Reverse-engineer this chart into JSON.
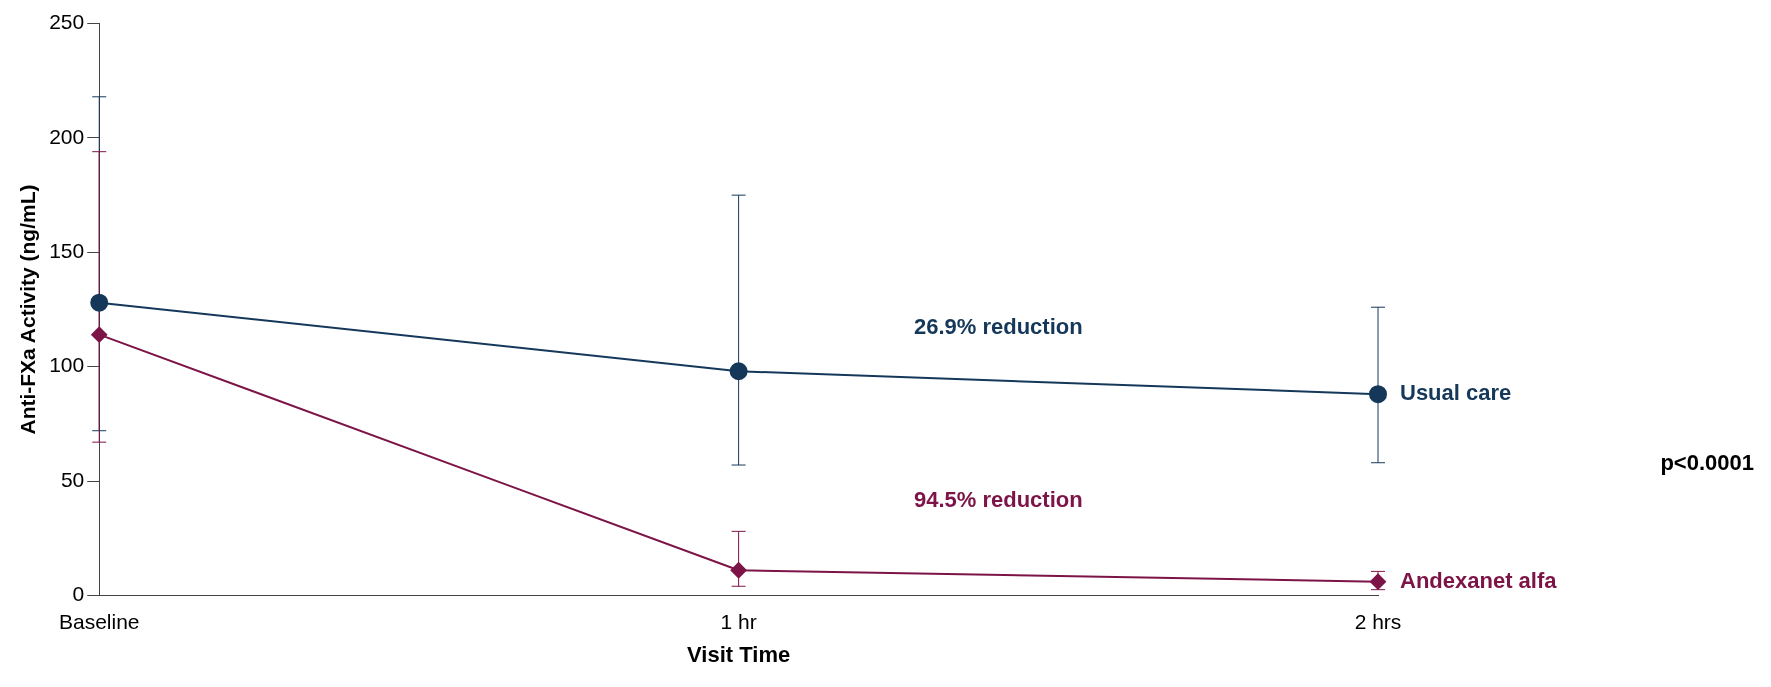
{
  "chart_data": {
    "type": "line",
    "xlabel": "Visit Time",
    "ylabel": "Anti-FXa Activity (ng/mL)",
    "categories": [
      "Baseline",
      "1 hr",
      "2 hrs"
    ],
    "series": [
      {
        "name": "Usual care",
        "color": "#15385a",
        "marker": "circle",
        "values": [
          128,
          98,
          88
        ],
        "errors": [
          [
            72,
            218
          ],
          [
            57,
            175
          ],
          [
            58,
            126
          ]
        ]
      },
      {
        "name": "Andexanet alfa",
        "color": "#7d1448",
        "marker": "diamond",
        "values": [
          114,
          11,
          6
        ],
        "errors": [
          [
            67,
            194
          ],
          [
            4,
            28
          ],
          [
            2.5,
            10.5
          ]
        ]
      }
    ],
    "ylim": [
      0,
      250
    ],
    "yticks": [
      0,
      50,
      100,
      150,
      200,
      250
    ],
    "grid": false,
    "legend": false,
    "annotations": [
      "26.9% reduction",
      "94.5% reduction",
      "p<0.0001"
    ]
  }
}
